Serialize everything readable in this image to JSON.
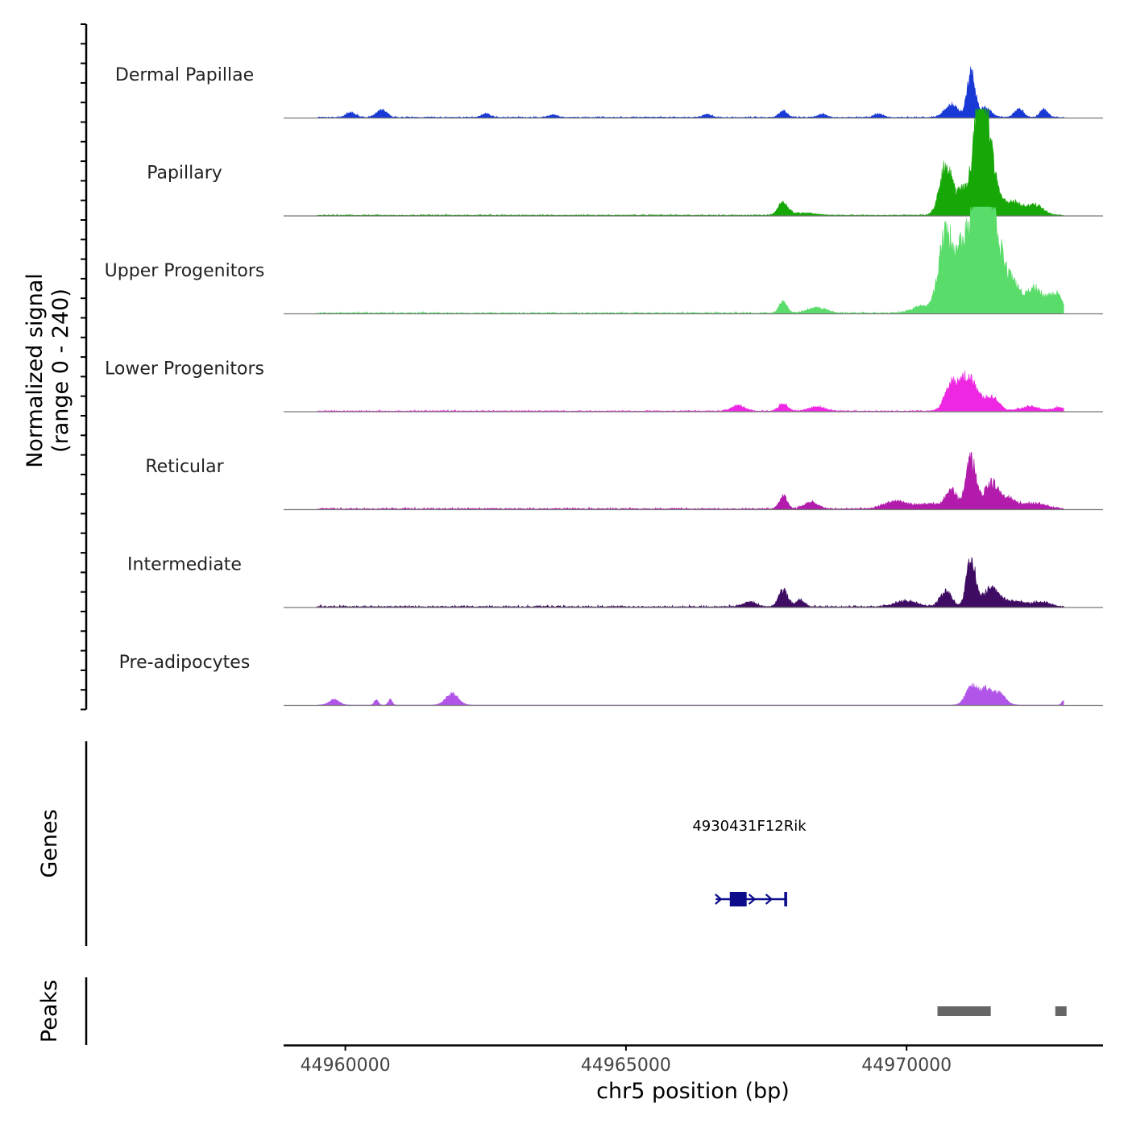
{
  "chart_data": {
    "type": "area",
    "title": "",
    "ylabel_line1": "Normalized signal",
    "ylabel_line2": "(range 0 - 240)",
    "y_range": [
      0,
      240
    ],
    "xlabel": "chr5 position (bp)",
    "x_range": [
      44958900,
      44973500
    ],
    "x_ticks": [
      44960000,
      44965000,
      44970000
    ],
    "x_tick_labels": [
      "44960000",
      "44965000",
      "44970000"
    ],
    "series": [
      {
        "name": "Dermal Papillae",
        "color": "#1939d6",
        "peaks": [
          [
            44960100,
            10,
            90
          ],
          [
            44960650,
            16,
            90
          ],
          [
            44962500,
            8,
            80
          ],
          [
            44963700,
            6,
            70
          ],
          [
            44966450,
            7,
            70
          ],
          [
            44967800,
            15,
            70
          ],
          [
            44968500,
            8,
            70
          ],
          [
            44969500,
            8,
            80
          ],
          [
            44970800,
            28,
            120
          ],
          [
            44971150,
            100,
            70
          ],
          [
            44971400,
            20,
            110
          ],
          [
            44972000,
            18,
            80
          ],
          [
            44972450,
            18,
            70
          ]
        ],
        "noise": 3,
        "start": 44959500,
        "end": 44972800
      },
      {
        "name": "Papillary",
        "color": "#17a807",
        "peaks": [
          [
            44967800,
            28,
            90
          ],
          [
            44968200,
            5,
            200
          ],
          [
            44970700,
            110,
            110
          ],
          [
            44971000,
            55,
            100
          ],
          [
            44971300,
            215,
            110
          ],
          [
            44971450,
            130,
            140
          ],
          [
            44971900,
            30,
            160
          ],
          [
            44972300,
            22,
            140
          ]
        ],
        "noise": 3,
        "start": 44959500,
        "end": 44972800
      },
      {
        "name": "Upper Progenitors",
        "color": "#59dc6a",
        "peaks": [
          [
            44967800,
            25,
            70
          ],
          [
            44968400,
            12,
            160
          ],
          [
            44970300,
            15,
            200
          ],
          [
            44970700,
            185,
            120
          ],
          [
            44971000,
            150,
            110
          ],
          [
            44971300,
            315,
            120
          ],
          [
            44971500,
            210,
            170
          ],
          [
            44971900,
            60,
            160
          ],
          [
            44972300,
            52,
            130
          ],
          [
            44972650,
            45,
            120
          ]
        ],
        "noise": 4,
        "start": 44959500,
        "end": 44972800
      },
      {
        "name": "Lower Progenitors",
        "color": "#ee28e2",
        "peaks": [
          [
            44967000,
            12,
            120
          ],
          [
            44967800,
            16,
            80
          ],
          [
            44968400,
            10,
            140
          ],
          [
            44970800,
            55,
            120
          ],
          [
            44971100,
            75,
            140
          ],
          [
            44971500,
            30,
            140
          ],
          [
            44972200,
            10,
            160
          ],
          [
            44972700,
            8,
            100
          ]
        ],
        "noise": 3,
        "start": 44959500,
        "end": 44972800
      },
      {
        "name": "Reticular",
        "color": "#b21bab",
        "peaks": [
          [
            44967800,
            30,
            70
          ],
          [
            44968300,
            15,
            120
          ],
          [
            44969800,
            18,
            200
          ],
          [
            44970400,
            12,
            200
          ],
          [
            44970800,
            42,
            100
          ],
          [
            44971150,
            110,
            90
          ],
          [
            44971500,
            55,
            120
          ],
          [
            44971800,
            22,
            160
          ],
          [
            44972300,
            12,
            200
          ]
        ],
        "noise": 4,
        "start": 44959500,
        "end": 44972800
      },
      {
        "name": "Intermediate",
        "color": "#3f0c63",
        "peaks": [
          [
            44967200,
            10,
            120
          ],
          [
            44967800,
            38,
            80
          ],
          [
            44968100,
            14,
            80
          ],
          [
            44970000,
            12,
            200
          ],
          [
            44970700,
            35,
            100
          ],
          [
            44971150,
            105,
            80
          ],
          [
            44971500,
            40,
            140
          ],
          [
            44971900,
            12,
            200
          ],
          [
            44972400,
            10,
            160
          ]
        ],
        "noise": 5,
        "start": 44959500,
        "end": 44972800
      },
      {
        "name": "Pre-adipocytes",
        "color": "#b055e8",
        "peaks": [
          [
            44959800,
            12,
            90
          ],
          [
            44960550,
            12,
            35
          ],
          [
            44960800,
            12,
            35
          ],
          [
            44961900,
            25,
            110
          ],
          [
            44971150,
            40,
            100
          ],
          [
            44971400,
            34,
            110
          ],
          [
            44971650,
            25,
            110
          ],
          [
            44972800,
            10,
            35
          ]
        ],
        "noise": 0,
        "start": 44959500,
        "end": 44972800
      }
    ],
    "genes_label": "Genes",
    "gene": {
      "name": "4930431F12Rik",
      "start": 44966600,
      "end": 44967850,
      "exons": [
        [
          44966850,
          44967150
        ],
        [
          44967820,
          44967860
        ]
      ],
      "strand": "+",
      "color": "#0c0c8a"
    },
    "peaks_label": "Peaks",
    "peak_regions": [
      [
        44970550,
        44971500
      ],
      [
        44972650,
        44972850
      ]
    ],
    "peak_color": "#666666"
  }
}
